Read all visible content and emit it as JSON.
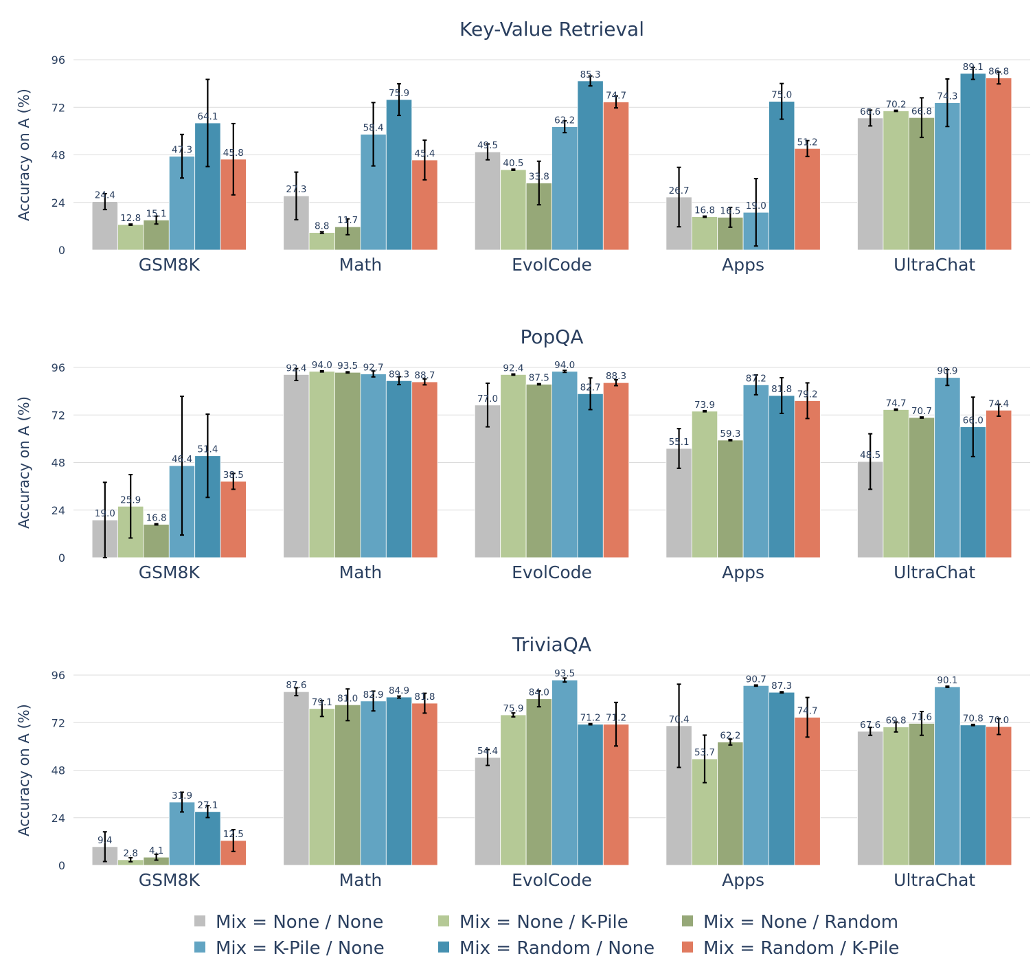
{
  "chart_data": {
    "type": "bar",
    "ylabel": "Accuracy on A (%)",
    "yticks": [
      0,
      24,
      48,
      72,
      96
    ],
    "ylim": [
      0,
      96
    ],
    "categories": [
      "GSM8K",
      "Math",
      "EvolCode",
      "Apps",
      "UltraChat"
    ],
    "series_names": [
      "Mix = None / None",
      "Mix = None / K-Pile",
      "Mix = None / Random",
      "Mix = K-Pile / None",
      "Mix = Random / None",
      "Mix = Random / K-Pile"
    ],
    "colors": [
      "#bfbfbf",
      "#b5c996",
      "#96a878",
      "#62a4c2",
      "#4590b0",
      "#e07a5f"
    ],
    "legend_position": "bottom-center",
    "panels": [
      {
        "title": "Key-Value Retrieval",
        "values": [
          [
            24.4,
            12.8,
            15.1,
            47.3,
            64.1,
            45.8
          ],
          [
            27.3,
            8.8,
            11.7,
            58.4,
            75.9,
            45.4
          ],
          [
            49.5,
            40.5,
            33.8,
            62.2,
            85.3,
            74.7
          ],
          [
            26.7,
            16.8,
            16.5,
            19.0,
            75.0,
            51.2
          ],
          [
            66.6,
            70.2,
            66.8,
            74.3,
            89.1,
            86.8
          ]
        ],
        "errors": [
          [
            4,
            0.3,
            2,
            11,
            22,
            18
          ],
          [
            12,
            0.4,
            4,
            16,
            8,
            10
          ],
          [
            4,
            0.3,
            11,
            3,
            2.5,
            3
          ],
          [
            15,
            0.3,
            5,
            17,
            9,
            4
          ],
          [
            4,
            0.3,
            10,
            12,
            3,
            3
          ]
        ]
      },
      {
        "title": "PopQA",
        "values": [
          [
            19.0,
            25.9,
            16.8,
            46.4,
            51.4,
            38.5
          ],
          [
            92.4,
            94.0,
            93.5,
            92.7,
            89.3,
            88.7
          ],
          [
            77.0,
            92.4,
            87.5,
            94.0,
            82.7,
            88.3
          ],
          [
            55.1,
            73.9,
            59.3,
            87.2,
            81.8,
            79.2
          ],
          [
            48.5,
            74.7,
            70.7,
            90.9,
            66.0,
            74.4
          ]
        ],
        "errors": [
          [
            19,
            16,
            0.3,
            35,
            21,
            4
          ],
          [
            3,
            0.3,
            0.3,
            1.5,
            2,
            1.5
          ],
          [
            11,
            0.3,
            0.3,
            0.5,
            8,
            1.5
          ],
          [
            10,
            0.3,
            0.3,
            5,
            9,
            9
          ],
          [
            14,
            0.3,
            0.3,
            4,
            15,
            3
          ]
        ]
      },
      {
        "title": "TriviaQA",
        "values": [
          [
            9.4,
            2.8,
            4.1,
            31.9,
            27.1,
            12.5
          ],
          [
            87.6,
            79.1,
            81.0,
            82.9,
            84.9,
            81.8
          ],
          [
            54.4,
            75.9,
            84.0,
            93.5,
            71.2,
            71.2
          ],
          [
            70.4,
            53.7,
            62.2,
            90.7,
            87.3,
            74.7
          ],
          [
            67.6,
            69.8,
            71.6,
            90.1,
            70.8,
            70.0
          ]
        ],
        "errors": [
          [
            7.5,
            1,
            1.5,
            5,
            3,
            5.5
          ],
          [
            2,
            4,
            8,
            5,
            0.5,
            5
          ],
          [
            4,
            1,
            4,
            1,
            0.3,
            11
          ],
          [
            21,
            12,
            1.5,
            0.3,
            0.3,
            10
          ],
          [
            2,
            2.5,
            6,
            0.3,
            0.3,
            4
          ]
        ]
      }
    ]
  }
}
